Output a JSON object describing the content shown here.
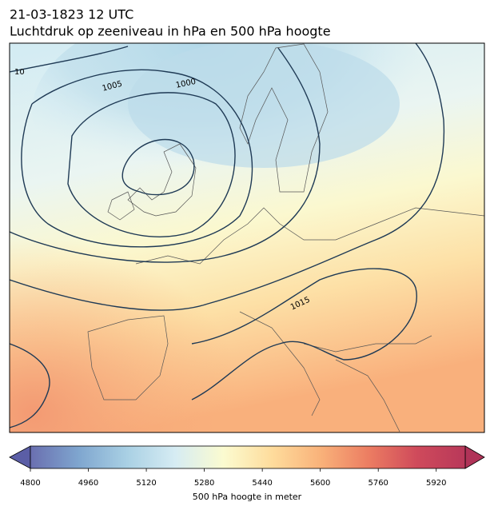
{
  "chart_data": {
    "type": "contour_map",
    "title": "21-03-1823 12 UTC",
    "subtitle": "Luchtdruk op zeeniveau in hPa en 500 hPa hoogte",
    "contour_labels": [
      "10",
      "1005",
      "1000",
      "1015"
    ],
    "colorbar": {
      "label": "500 hPa hoogte in meter",
      "lim": [
        4800,
        6000
      ],
      "ticks": [
        4800,
        4960,
        5120,
        5280,
        5440,
        5600,
        5760,
        5920
      ],
      "colors": [
        "#6a6fb0",
        "#7fa6cf",
        "#a9d0e4",
        "#d6ecf3",
        "#fbfbd0",
        "#fedc9c",
        "#f9b27a",
        "#ec7d62",
        "#cf4a5b",
        "#b8385a"
      ]
    }
  }
}
